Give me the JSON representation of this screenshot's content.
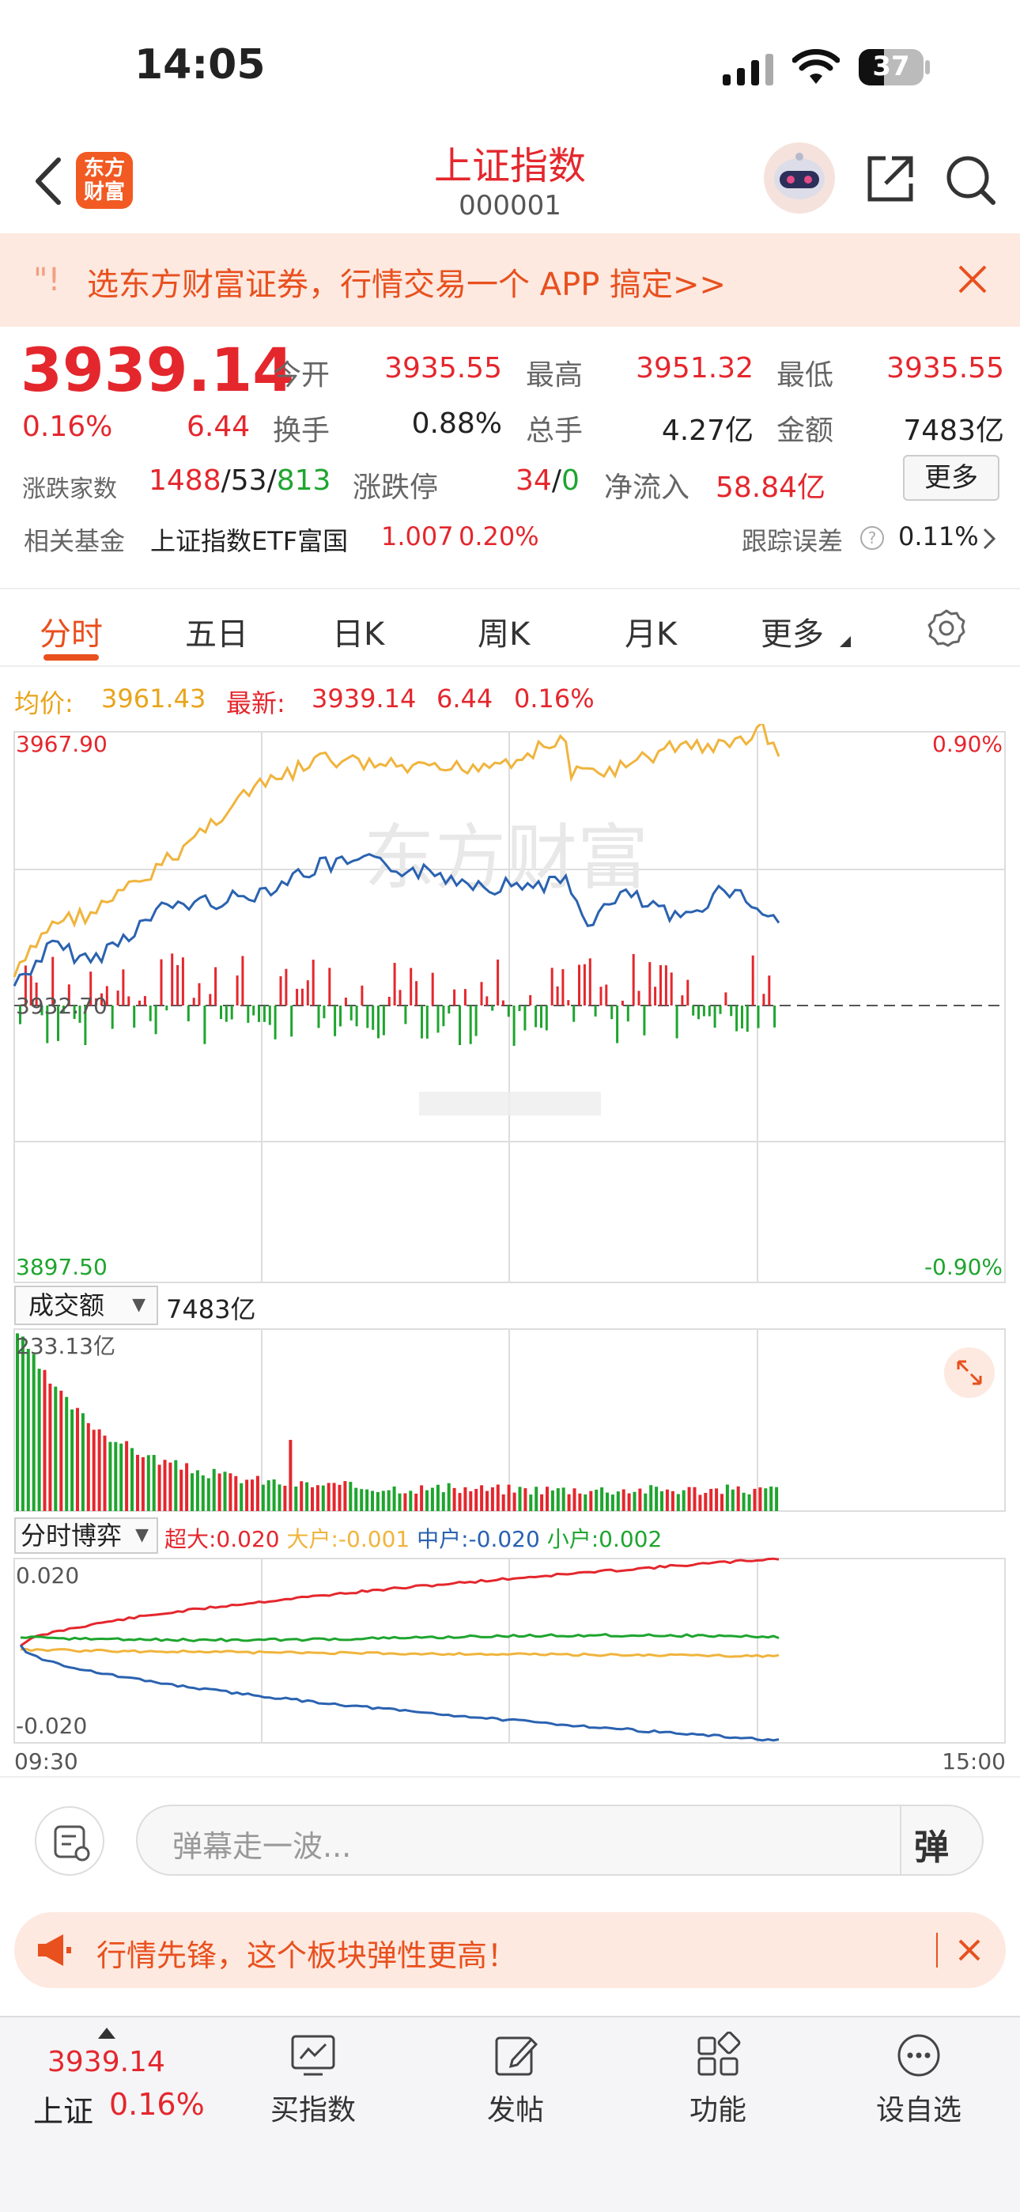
{
  "status_bar": {
    "time": "14:05",
    "battery": "37"
  },
  "nav": {
    "title": "上证指数",
    "code": "000001",
    "logo_text": "东方财富"
  },
  "promo": {
    "text": "选东方财富证券，行情交易一个 APP 搞定>>"
  },
  "quote": {
    "price": "3939.14",
    "change_pct": "0.16%",
    "change_abs": "6.44",
    "rows": [
      [
        {
          "label": "今开",
          "value": "3935.55",
          "color": "red"
        },
        {
          "label": "最高",
          "value": "3951.32",
          "color": "red"
        },
        {
          "label": "最低",
          "value": "3935.55",
          "color": "red"
        }
      ],
      [
        {
          "label": "换手",
          "value": "0.88%",
          "color": "dark"
        },
        {
          "label": "总手",
          "value": "4.27亿",
          "color": "dark"
        },
        {
          "label": "金额",
          "value": "7483亿",
          "color": "dark"
        }
      ]
    ],
    "breadth_label": "涨跌家数",
    "breadth_up": "1488",
    "breadth_flat": "53",
    "breadth_down": "813",
    "limit_label": "涨跌停",
    "limit_up": "34",
    "limit_down": "0",
    "inflow_label": "净流入",
    "inflow_value": "58.84亿",
    "more_button": "更多",
    "fund_label": "相关基金",
    "fund_name": "上证指数ETF富国",
    "fund_price": "1.007",
    "fund_change": "0.20%",
    "tracking_label": "跟踪误差",
    "tracking_value": "0.11%"
  },
  "tabs": [
    "分时",
    "五日",
    "日K",
    "周K",
    "月K",
    "更多"
  ],
  "intraday": {
    "avg_label": "均价:",
    "avg_value": "3961.43",
    "latest_label": "最新:",
    "latest_value": "3939.14",
    "latest_change": "6.44",
    "latest_pct": "0.16%",
    "y_top": "3967.90",
    "y_mid": "3932.70",
    "y_bottom": "3897.50",
    "pct_top": "0.90%",
    "pct_bottom": "-0.90%",
    "watermark": "东方财富"
  },
  "volume": {
    "dropdown": "成交额",
    "total": "7483亿",
    "max_label": "233.13亿"
  },
  "bo_yi": {
    "dropdown": "分时博弈",
    "super_label": "超大:0.020",
    "big_label": "大户:-0.001",
    "mid_label": "中户:-0.020",
    "small_label": "小户:0.002",
    "y_top": "0.020",
    "y_bottom": "-0.020",
    "time_start": "09:30",
    "time_end": "15:00"
  },
  "comment": {
    "placeholder": "弹幕走一波...",
    "danmu_icon": "弹"
  },
  "ad": {
    "text": "行情先锋，这个板块弹性更高！"
  },
  "bottom_nav": {
    "index_price": "3939.14",
    "index_name": "上证",
    "index_pct": "0.16%",
    "items": [
      "买指数",
      "发帖",
      "功能",
      "设自选"
    ]
  },
  "colors": {
    "up": "#e4272d",
    "down": "#1ea52e",
    "avg_line": "#f0b43c",
    "price_line": "#2a62b0",
    "accent": "#e8501e"
  }
}
